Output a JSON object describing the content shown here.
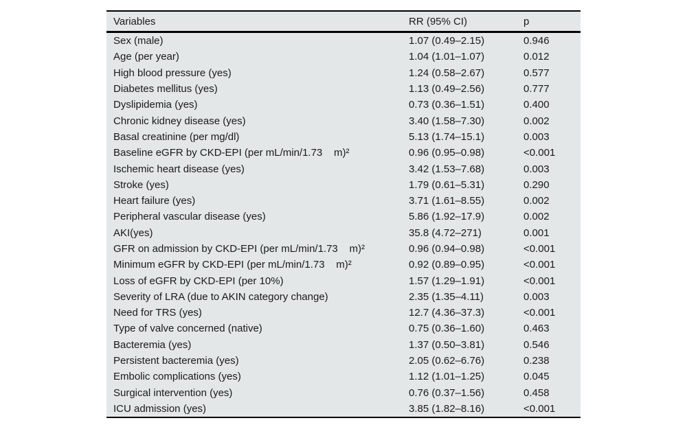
{
  "colors": {
    "table_background": "#e3e7e7",
    "rule": "#000000",
    "text": "#1a1a1a",
    "page_background": "#ffffff"
  },
  "table": {
    "columns": [
      "Variables",
      "RR (95% CI)",
      "p"
    ],
    "rows": [
      {
        "variable": "Sex (male)",
        "rr": "1.07 (0.49–2.15)",
        "p": "0.946"
      },
      {
        "variable": "Age (per year)",
        "rr": "1.04 (1.01–1.07)",
        "p": "0.012"
      },
      {
        "variable": "High blood pressure (yes)",
        "rr": "1.24 (0.58–2.67)",
        "p": "0.577"
      },
      {
        "variable": "Diabetes mellitus (yes)",
        "rr": "1.13 (0.49–2.56)",
        "p": "0.777"
      },
      {
        "variable": "Dyslipidemia (yes)",
        "rr": "0.73 (0.36–1.51)",
        "p": "0.400"
      },
      {
        "variable": "Chronic kidney disease (yes)",
        "rr": "3.40 (1.58–7.30)",
        "p": "0.002"
      },
      {
        "variable": "Basal creatinine (per mg/dl)",
        "rr": "5.13 (1.74–15.1)",
        "p": "0.003"
      },
      {
        "variable": "Baseline eGFR by CKD-EPI (per mL/min/1.73    m)²",
        "rr": "0.96 (0.95–0.98)",
        "p": "<0.001"
      },
      {
        "variable": "Ischemic heart disease (yes)",
        "rr": "3.42 (1.53–7.68)",
        "p": "0.003"
      },
      {
        "variable": "Stroke (yes)",
        "rr": "1.79 (0.61–5.31)",
        "p": "0.290"
      },
      {
        "variable": "Heart failure (yes)",
        "rr": "3.71 (1.61–8.55)",
        "p": "0.002"
      },
      {
        "variable": "Peripheral vascular disease (yes)",
        "rr": "5.86 (1.92–17.9)",
        "p": "0.002"
      },
      {
        "variable": "AKI(yes)",
        "rr": "35.8 (4.72–271)",
        "p": "0.001"
      },
      {
        "variable": "GFR on admission by CKD-EPI (per mL/min/1.73    m)²",
        "rr": "0.96 (0.94–0.98)",
        "p": "<0.001"
      },
      {
        "variable": "Minimum eGFR by CKD-EPI (per mL/min/1.73    m)²",
        "rr": "0.92 (0.89–0.95)",
        "p": "<0.001"
      },
      {
        "variable": "Loss of eGFR by CKD-EPI (per 10%)",
        "rr": "1.57 (1.29–1.91)",
        "p": "<0.001"
      },
      {
        "variable": "Severity of LRA (due to AKIN category change)",
        "rr": "2.35 (1.35–4.11)",
        "p": "0.003"
      },
      {
        "variable": "Need for TRS (yes)",
        "rr": "12.7 (4.36–37.3)",
        "p": "<0.001"
      },
      {
        "variable": "Type of valve concerned (native)",
        "rr": "0.75 (0.36–1.60)",
        "p": "0.463"
      },
      {
        "variable": "Bacteremia (yes)",
        "rr": "1.37 (0.50–3.81)",
        "p": "0.546"
      },
      {
        "variable": "Persistent bacteremia (yes)",
        "rr": "2.05 (0.62–6.76)",
        "p": "0.238"
      },
      {
        "variable": "Embolic complications (yes)",
        "rr": "1.12 (1.01–1.25)",
        "p": "0.045"
      },
      {
        "variable": "Surgical intervention (yes)",
        "rr": "0.76 (0.37–1.56)",
        "p": "0.458"
      },
      {
        "variable": "ICU admission (yes)",
        "rr": "3.85 (1.82–8.16)",
        "p": "<0.001"
      }
    ]
  }
}
